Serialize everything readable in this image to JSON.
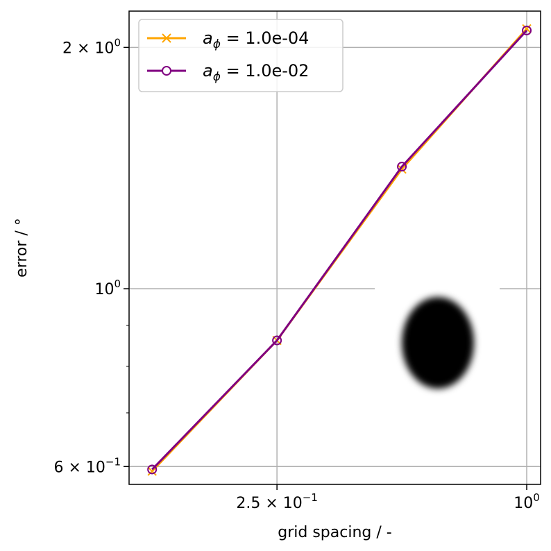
{
  "chart_data": {
    "type": "line",
    "xlabel": "grid spacing / -",
    "ylabel": "error / °",
    "xscale": "log",
    "yscale": "log",
    "xlim": [
      0.11,
      1.08
    ],
    "ylim": [
      0.57,
      2.22
    ],
    "grid": "major",
    "legend": "top-left",
    "x": [
      0.125,
      0.25,
      0.5,
      1.0
    ],
    "series": [
      {
        "name_pre": "a",
        "name_sub": "ϕ",
        "name_post": " =  1.0e-04",
        "marker": "x",
        "color": "#FFA500",
        "values": [
          0.592,
          0.862,
          1.41,
          2.11
        ]
      },
      {
        "name_pre": "a",
        "name_sub": "ϕ",
        "name_post": " =  1.0e-02",
        "marker": "o",
        "color": "#800080",
        "values": [
          0.595,
          0.862,
          1.42,
          2.1
        ]
      }
    ],
    "xticks": [
      {
        "value": 0.25,
        "base": "2.5 × 10",
        "exp": "−1"
      },
      {
        "value": 1.0,
        "base": "10",
        "exp": "0"
      }
    ],
    "yticks": [
      {
        "value": 0.6,
        "base": "6 × 10",
        "exp": "−1"
      },
      {
        "value": 1.0,
        "base": "10",
        "exp": "0"
      },
      {
        "value": 2.0,
        "base": "2 × 10",
        "exp": "0"
      }
    ],
    "yminor": [
      0.7,
      0.8,
      0.9
    ]
  }
}
